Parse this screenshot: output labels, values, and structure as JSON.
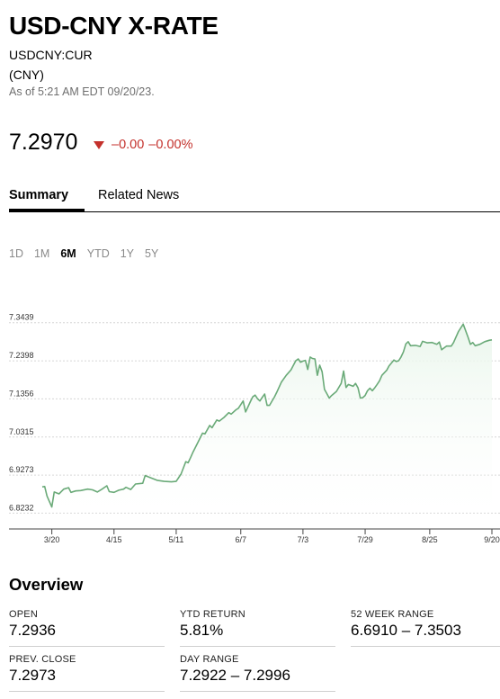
{
  "header": {
    "title": "USD-CNY X-RATE",
    "ticker": "USDCNY:CUR",
    "currency": "(CNY)",
    "as_of": "As of 5:21 AM EDT 09/20/23."
  },
  "quote": {
    "price": "7.2970",
    "change": "–0.00",
    "change_pct": "–0.00%",
    "direction": "down",
    "down_color": "#c4312c"
  },
  "tabs": [
    {
      "label": "Summary",
      "active": true
    },
    {
      "label": "Related News",
      "active": false
    }
  ],
  "ranges": [
    {
      "label": "1D",
      "active": false
    },
    {
      "label": "1M",
      "active": false
    },
    {
      "label": "6M",
      "active": true
    },
    {
      "label": "YTD",
      "active": false
    },
    {
      "label": "1Y",
      "active": false
    },
    {
      "label": "5Y",
      "active": false
    }
  ],
  "chart_data": {
    "type": "area",
    "line_color": "#6aaa78",
    "fill_color": "#eaf6ec",
    "grid": true,
    "ylim": [
      6.78,
      7.39
    ],
    "y_ticks": [
      {
        "value": 6.8232,
        "label": "6.8232"
      },
      {
        "value": 6.9273,
        "label": "6.9273"
      },
      {
        "value": 7.0315,
        "label": "7.0315"
      },
      {
        "value": 7.1356,
        "label": "7.1356"
      },
      {
        "value": 7.2398,
        "label": "7.2398"
      },
      {
        "value": 7.3439,
        "label": "7.3439"
      }
    ],
    "x_domain": [
      "2023-03-16",
      "2023-09-20"
    ],
    "x_ticks": [
      {
        "date": "2023-03-20",
        "label": "3/20"
      },
      {
        "date": "2023-04-15",
        "label": "4/15"
      },
      {
        "date": "2023-05-11",
        "label": "5/11"
      },
      {
        "date": "2023-06-07",
        "label": "6/7"
      },
      {
        "date": "2023-07-03",
        "label": "7/3"
      },
      {
        "date": "2023-07-29",
        "label": "7/29"
      },
      {
        "date": "2023-08-25",
        "label": "8/25"
      },
      {
        "date": "2023-09-20",
        "label": "9/20"
      }
    ],
    "series": [
      {
        "points": [
          [
            "2023-03-16",
            6.895
          ],
          [
            "2023-03-17",
            6.896
          ],
          [
            "2023-03-18",
            6.87
          ],
          [
            "2023-03-20",
            6.84
          ],
          [
            "2023-03-21",
            6.881
          ],
          [
            "2023-03-23",
            6.876
          ],
          [
            "2023-03-25",
            6.889
          ],
          [
            "2023-03-27",
            6.893
          ],
          [
            "2023-03-28",
            6.88
          ],
          [
            "2023-03-30",
            6.884
          ],
          [
            "2023-04-01",
            6.885
          ],
          [
            "2023-04-04",
            6.889
          ],
          [
            "2023-04-06",
            6.887
          ],
          [
            "2023-04-08",
            6.881
          ],
          [
            "2023-04-10",
            6.889
          ],
          [
            "2023-04-12",
            6.898
          ],
          [
            "2023-04-13",
            6.882
          ],
          [
            "2023-04-15",
            6.88
          ],
          [
            "2023-04-17",
            6.886
          ],
          [
            "2023-04-19",
            6.889
          ],
          [
            "2023-04-20",
            6.894
          ],
          [
            "2023-04-22",
            6.888
          ],
          [
            "2023-04-24",
            6.903
          ],
          [
            "2023-04-27",
            6.905
          ],
          [
            "2023-04-28",
            6.926
          ],
          [
            "2023-04-30",
            6.921
          ],
          [
            "2023-05-03",
            6.913
          ],
          [
            "2023-05-06",
            6.91
          ],
          [
            "2023-05-09",
            6.909
          ],
          [
            "2023-05-11",
            6.91
          ],
          [
            "2023-05-13",
            6.93
          ],
          [
            "2023-05-15",
            6.964
          ],
          [
            "2023-05-16",
            6.961
          ],
          [
            "2023-05-17",
            6.975
          ],
          [
            "2023-05-18",
            6.99
          ],
          [
            "2023-05-20",
            7.016
          ],
          [
            "2023-05-22",
            7.042
          ],
          [
            "2023-05-23",
            7.04
          ],
          [
            "2023-05-25",
            7.063
          ],
          [
            "2023-05-26",
            7.057
          ],
          [
            "2023-05-28",
            7.078
          ],
          [
            "2023-05-29",
            7.075
          ],
          [
            "2023-05-31",
            7.085
          ],
          [
            "2023-06-02",
            7.098
          ],
          [
            "2023-06-03",
            7.094
          ],
          [
            "2023-06-05",
            7.106
          ],
          [
            "2023-06-06",
            7.11
          ],
          [
            "2023-06-07",
            7.12
          ],
          [
            "2023-06-08",
            7.13
          ],
          [
            "2023-06-09",
            7.1
          ],
          [
            "2023-06-11",
            7.128
          ],
          [
            "2023-06-12",
            7.141
          ],
          [
            "2023-06-13",
            7.146
          ],
          [
            "2023-06-14",
            7.136
          ],
          [
            "2023-06-15",
            7.13
          ],
          [
            "2023-06-16",
            7.14
          ],
          [
            "2023-06-17",
            7.149
          ],
          [
            "2023-06-18",
            7.118
          ],
          [
            "2023-06-19",
            7.118
          ],
          [
            "2023-06-20",
            7.129
          ],
          [
            "2023-06-21",
            7.14
          ],
          [
            "2023-06-22",
            7.153
          ],
          [
            "2023-06-24",
            7.182
          ],
          [
            "2023-06-26",
            7.2
          ],
          [
            "2023-06-28",
            7.215
          ],
          [
            "2023-06-30",
            7.24
          ],
          [
            "2023-07-01",
            7.245
          ],
          [
            "2023-07-02",
            7.236
          ],
          [
            "2023-07-03",
            7.239
          ],
          [
            "2023-07-04",
            7.241
          ],
          [
            "2023-07-05",
            7.216
          ],
          [
            "2023-07-06",
            7.25
          ],
          [
            "2023-07-07",
            7.246
          ],
          [
            "2023-07-08",
            7.245
          ],
          [
            "2023-07-09",
            7.2
          ],
          [
            "2023-07-10",
            7.228
          ],
          [
            "2023-07-11",
            7.21
          ],
          [
            "2023-07-12",
            7.162
          ],
          [
            "2023-07-13",
            7.15
          ],
          [
            "2023-07-14",
            7.138
          ],
          [
            "2023-07-15",
            7.145
          ],
          [
            "2023-07-17",
            7.156
          ],
          [
            "2023-07-19",
            7.178
          ],
          [
            "2023-07-20",
            7.212
          ],
          [
            "2023-07-21",
            7.167
          ],
          [
            "2023-07-22",
            7.175
          ],
          [
            "2023-07-24",
            7.17
          ],
          [
            "2023-07-25",
            7.178
          ],
          [
            "2023-07-26",
            7.166
          ],
          [
            "2023-07-27",
            7.138
          ],
          [
            "2023-07-28",
            7.139
          ],
          [
            "2023-07-29",
            7.145
          ],
          [
            "2023-07-30",
            7.158
          ],
          [
            "2023-07-31",
            7.165
          ],
          [
            "2023-08-01",
            7.158
          ],
          [
            "2023-08-02",
            7.166
          ],
          [
            "2023-08-03",
            7.175
          ],
          [
            "2023-08-04",
            7.185
          ],
          [
            "2023-08-05",
            7.2
          ],
          [
            "2023-08-07",
            7.214
          ],
          [
            "2023-08-08",
            7.226
          ],
          [
            "2023-08-10",
            7.242
          ],
          [
            "2023-08-11",
            7.238
          ],
          [
            "2023-08-12",
            7.24
          ],
          [
            "2023-08-13",
            7.25
          ],
          [
            "2023-08-14",
            7.264
          ],
          [
            "2023-08-15",
            7.286
          ],
          [
            "2023-08-16",
            7.292
          ],
          [
            "2023-08-17",
            7.281
          ],
          [
            "2023-08-19",
            7.282
          ],
          [
            "2023-08-21",
            7.279
          ],
          [
            "2023-08-22",
            7.293
          ],
          [
            "2023-08-24",
            7.289
          ],
          [
            "2023-08-26",
            7.29
          ],
          [
            "2023-08-28",
            7.285
          ],
          [
            "2023-08-29",
            7.291
          ],
          [
            "2023-08-30",
            7.27
          ],
          [
            "2023-09-01",
            7.28
          ],
          [
            "2023-09-03",
            7.28
          ],
          [
            "2023-09-04",
            7.29
          ],
          [
            "2023-09-05",
            7.305
          ],
          [
            "2023-09-06",
            7.32
          ],
          [
            "2023-09-08",
            7.34
          ],
          [
            "2023-09-10",
            7.305
          ],
          [
            "2023-09-11",
            7.285
          ],
          [
            "2023-09-12",
            7.29
          ],
          [
            "2023-09-13",
            7.281
          ],
          [
            "2023-09-15",
            7.285
          ],
          [
            "2023-09-17",
            7.292
          ],
          [
            "2023-09-19",
            7.296
          ],
          [
            "2023-09-20",
            7.297
          ]
        ]
      }
    ]
  },
  "overview": {
    "title": "Overview",
    "stats": [
      {
        "label": "OPEN",
        "value": "7.2936"
      },
      {
        "label": "YTD RETURN",
        "value": "5.81%"
      },
      {
        "label": "52 WEEK RANGE",
        "value": "6.6910 – 7.3503"
      },
      {
        "label": "PREV. CLOSE",
        "value": "7.2973"
      },
      {
        "label": "DAY RANGE",
        "value": "7.2922 – 7.2996"
      }
    ]
  }
}
